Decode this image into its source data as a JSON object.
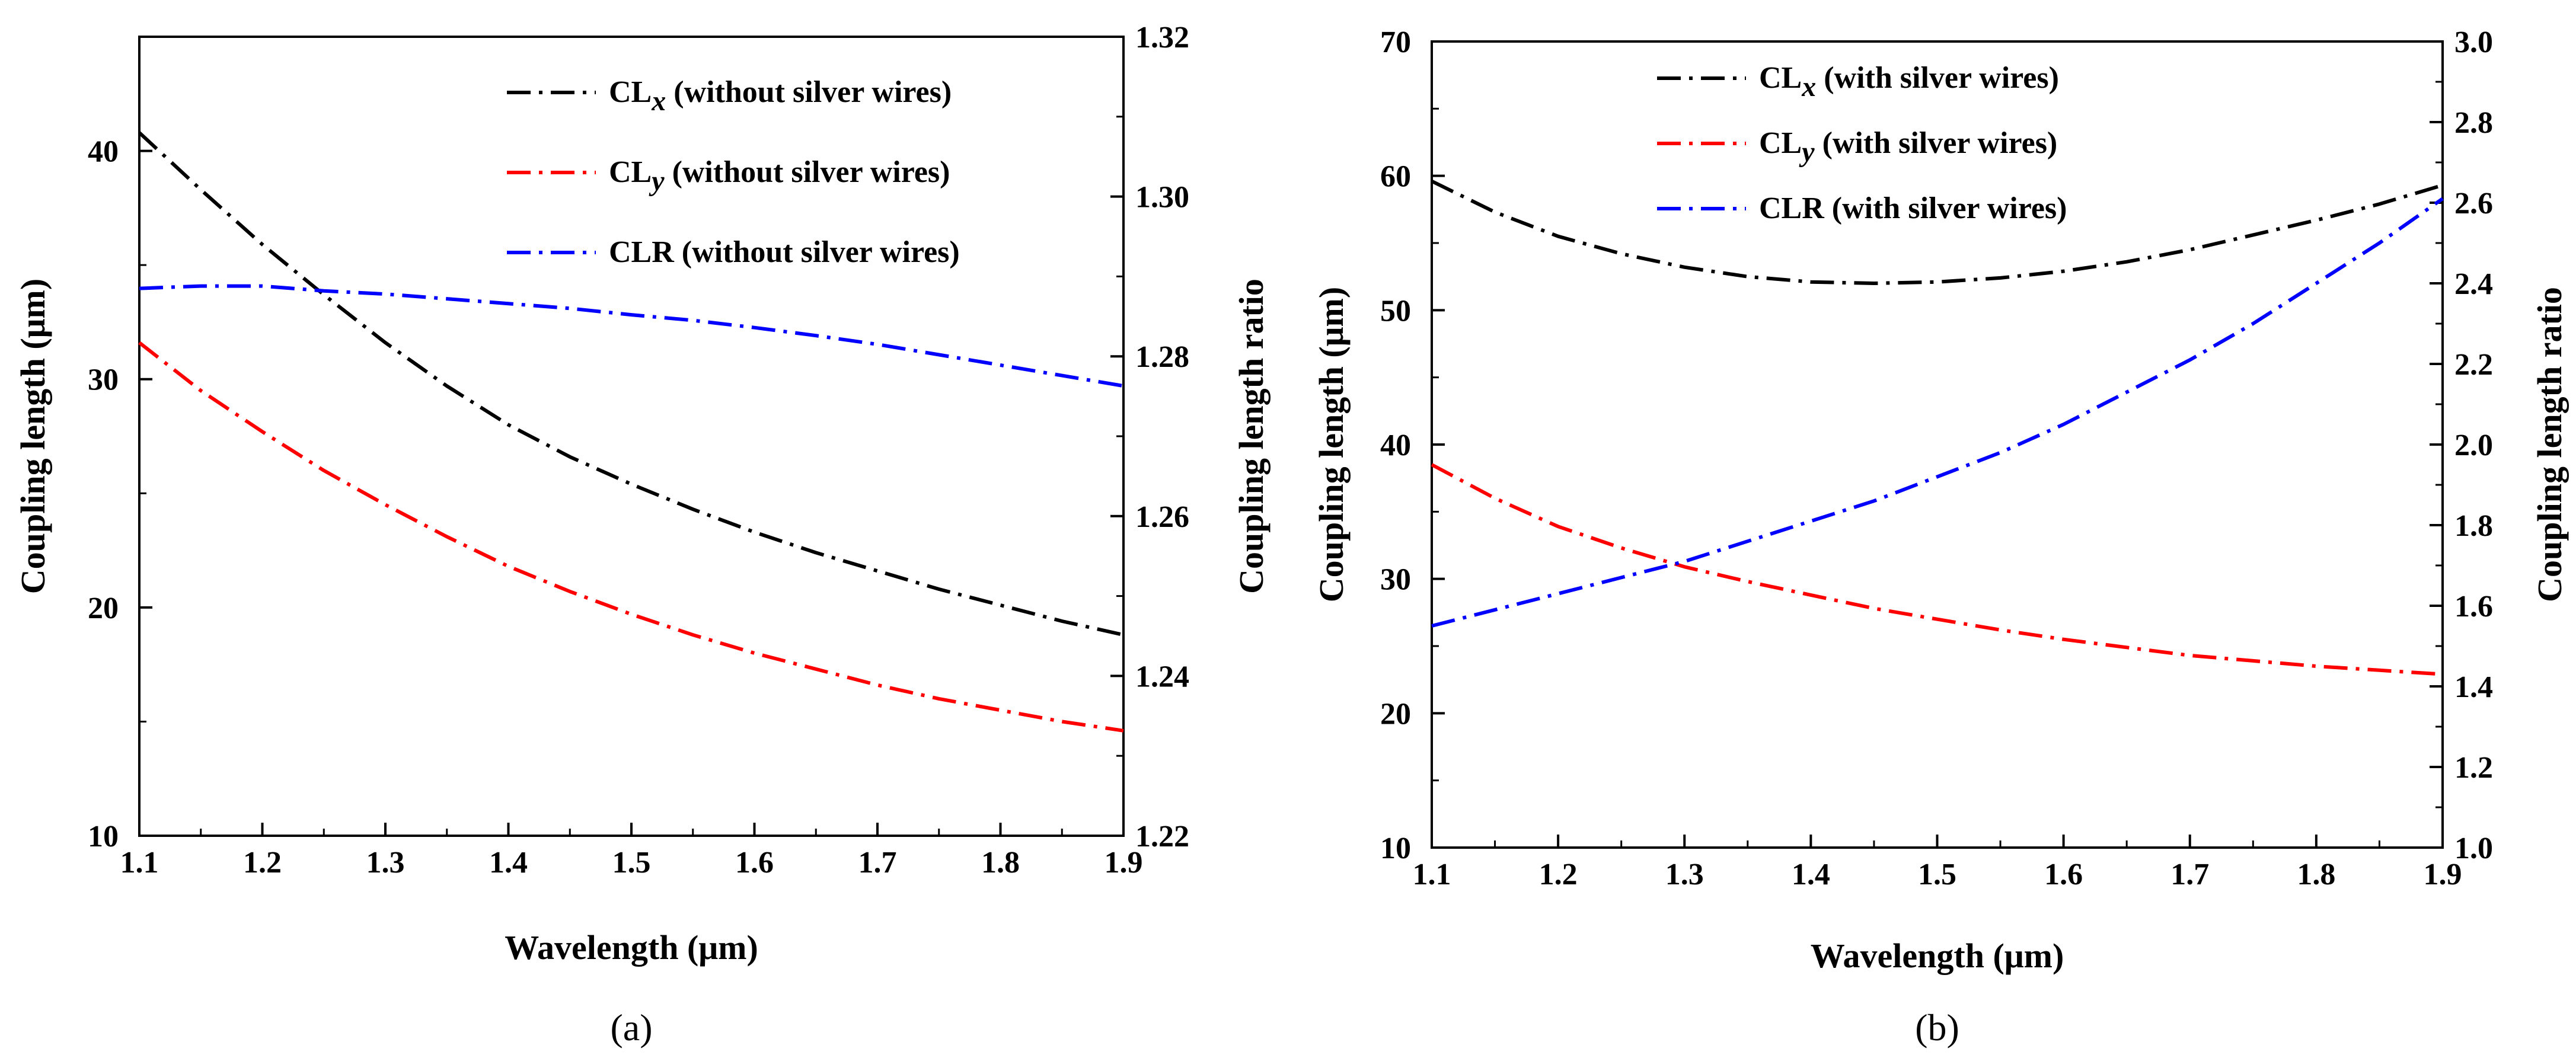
{
  "chart_data": [
    {
      "type": "line",
      "panel_label": "(a)",
      "xlabel": "Wavelength (μm)",
      "ylabel": "Coupling length (μm)",
      "y2label": "Coupling length ratio",
      "xlim": [
        1.1,
        1.9
      ],
      "ylim": [
        10,
        45
      ],
      "y2lim": [
        1.22,
        1.32
      ],
      "xticks": [
        "1.1",
        "1.2",
        "1.3",
        "1.4",
        "1.5",
        "1.6",
        "1.7",
        "1.8",
        "1.9"
      ],
      "yticks": [
        "10",
        "20",
        "30",
        "40"
      ],
      "y2ticks": [
        "1.22",
        "1.24",
        "1.26",
        "1.28",
        "1.30",
        "1.32"
      ],
      "legend_position": "top-right",
      "series": [
        {
          "name": "CLx (without silver wires)",
          "base": "CL",
          "sub": "x",
          "suffix": " (without silver wires)",
          "color": "#000000",
          "axis": "left",
          "x": [
            1.1,
            1.15,
            1.2,
            1.25,
            1.3,
            1.35,
            1.4,
            1.45,
            1.5,
            1.55,
            1.6,
            1.65,
            1.7,
            1.75,
            1.8,
            1.85,
            1.9
          ],
          "y": [
            40.8,
            38.3,
            35.9,
            33.7,
            31.6,
            29.7,
            28.0,
            26.6,
            25.4,
            24.3,
            23.3,
            22.4,
            21.6,
            20.8,
            20.1,
            19.4,
            18.8
          ]
        },
        {
          "name": "CLy (without silver wires)",
          "base": "CL",
          "sub": "y",
          "suffix": " (without silver wires)",
          "color": "#ff0000",
          "axis": "left",
          "x": [
            1.1,
            1.15,
            1.2,
            1.25,
            1.3,
            1.35,
            1.4,
            1.45,
            1.5,
            1.55,
            1.6,
            1.65,
            1.7,
            1.75,
            1.8,
            1.85,
            1.9
          ],
          "y": [
            31.6,
            29.5,
            27.7,
            26.0,
            24.5,
            23.1,
            21.8,
            20.7,
            19.7,
            18.8,
            18.0,
            17.3,
            16.6,
            16.0,
            15.5,
            15.0,
            14.6
          ]
        },
        {
          "name": "CLR (without silver wires)",
          "base": "CLR",
          "sub": "",
          "suffix": " (without silver wires)",
          "color": "#0000ff",
          "axis": "right",
          "x": [
            1.1,
            1.15,
            1.2,
            1.25,
            1.3,
            1.35,
            1.4,
            1.45,
            1.5,
            1.55,
            1.6,
            1.65,
            1.7,
            1.75,
            1.8,
            1.85,
            1.9
          ],
          "y": [
            1.2885,
            1.2888,
            1.2888,
            1.2882,
            1.2878,
            1.2872,
            1.2866,
            1.286,
            1.2852,
            1.2845,
            1.2836,
            1.2826,
            1.2815,
            1.2802,
            1.2789,
            1.2776,
            1.2763
          ]
        }
      ]
    },
    {
      "type": "line",
      "panel_label": "(b)",
      "xlabel": "Wavelength (μm)",
      "ylabel": "Coupling length (μm)",
      "y2label": "Coupling length ratio",
      "xlim": [
        1.1,
        1.9
      ],
      "ylim": [
        10,
        70
      ],
      "y2lim": [
        1.0,
        3.0
      ],
      "xticks": [
        "1.1",
        "1.2",
        "1.3",
        "1.4",
        "1.5",
        "1.6",
        "1.7",
        "1.8",
        "1.9"
      ],
      "yticks": [
        "10",
        "20",
        "30",
        "40",
        "50",
        "60",
        "70"
      ],
      "y2ticks": [
        "1.0",
        "1.2",
        "1.4",
        "1.6",
        "1.8",
        "2.0",
        "2.2",
        "2.4",
        "2.6",
        "2.8",
        "3.0"
      ],
      "legend_position": "top-center",
      "series": [
        {
          "name": "CLx (with silver wires)",
          "base": "CL",
          "sub": "x",
          "suffix": " (with silver wires)",
          "color": "#000000",
          "axis": "left",
          "x": [
            1.1,
            1.15,
            1.2,
            1.25,
            1.3,
            1.35,
            1.4,
            1.45,
            1.5,
            1.55,
            1.6,
            1.65,
            1.7,
            1.75,
            1.8,
            1.85,
            1.9
          ],
          "y": [
            59.6,
            57.3,
            55.5,
            54.2,
            53.2,
            52.5,
            52.1,
            52.0,
            52.1,
            52.4,
            52.9,
            53.6,
            54.5,
            55.6,
            56.7,
            57.9,
            59.3
          ]
        },
        {
          "name": "CLy (with silver wires)",
          "base": "CL",
          "sub": "y",
          "suffix": " (with silver wires)",
          "color": "#ff0000",
          "axis": "left",
          "x": [
            1.1,
            1.15,
            1.2,
            1.25,
            1.3,
            1.35,
            1.4,
            1.45,
            1.5,
            1.55,
            1.6,
            1.65,
            1.7,
            1.75,
            1.8,
            1.85,
            1.9
          ],
          "y": [
            38.5,
            36.0,
            33.9,
            32.3,
            30.9,
            29.8,
            28.8,
            27.8,
            27.0,
            26.2,
            25.5,
            24.9,
            24.3,
            23.9,
            23.5,
            23.2,
            22.9
          ]
        },
        {
          "name": "CLR (with silver wires)",
          "base": "CLR",
          "sub": "",
          "suffix": " (with silver wires)",
          "color": "#0000ff",
          "axis": "right",
          "x": [
            1.1,
            1.15,
            1.2,
            1.25,
            1.3,
            1.35,
            1.4,
            1.45,
            1.5,
            1.55,
            1.6,
            1.65,
            1.7,
            1.75,
            1.8,
            1.85,
            1.9
          ],
          "y": [
            1.55,
            1.59,
            1.63,
            1.67,
            1.71,
            1.76,
            1.81,
            1.86,
            1.92,
            1.98,
            2.05,
            2.13,
            2.21,
            2.3,
            2.4,
            2.5,
            2.61
          ]
        }
      ]
    }
  ]
}
